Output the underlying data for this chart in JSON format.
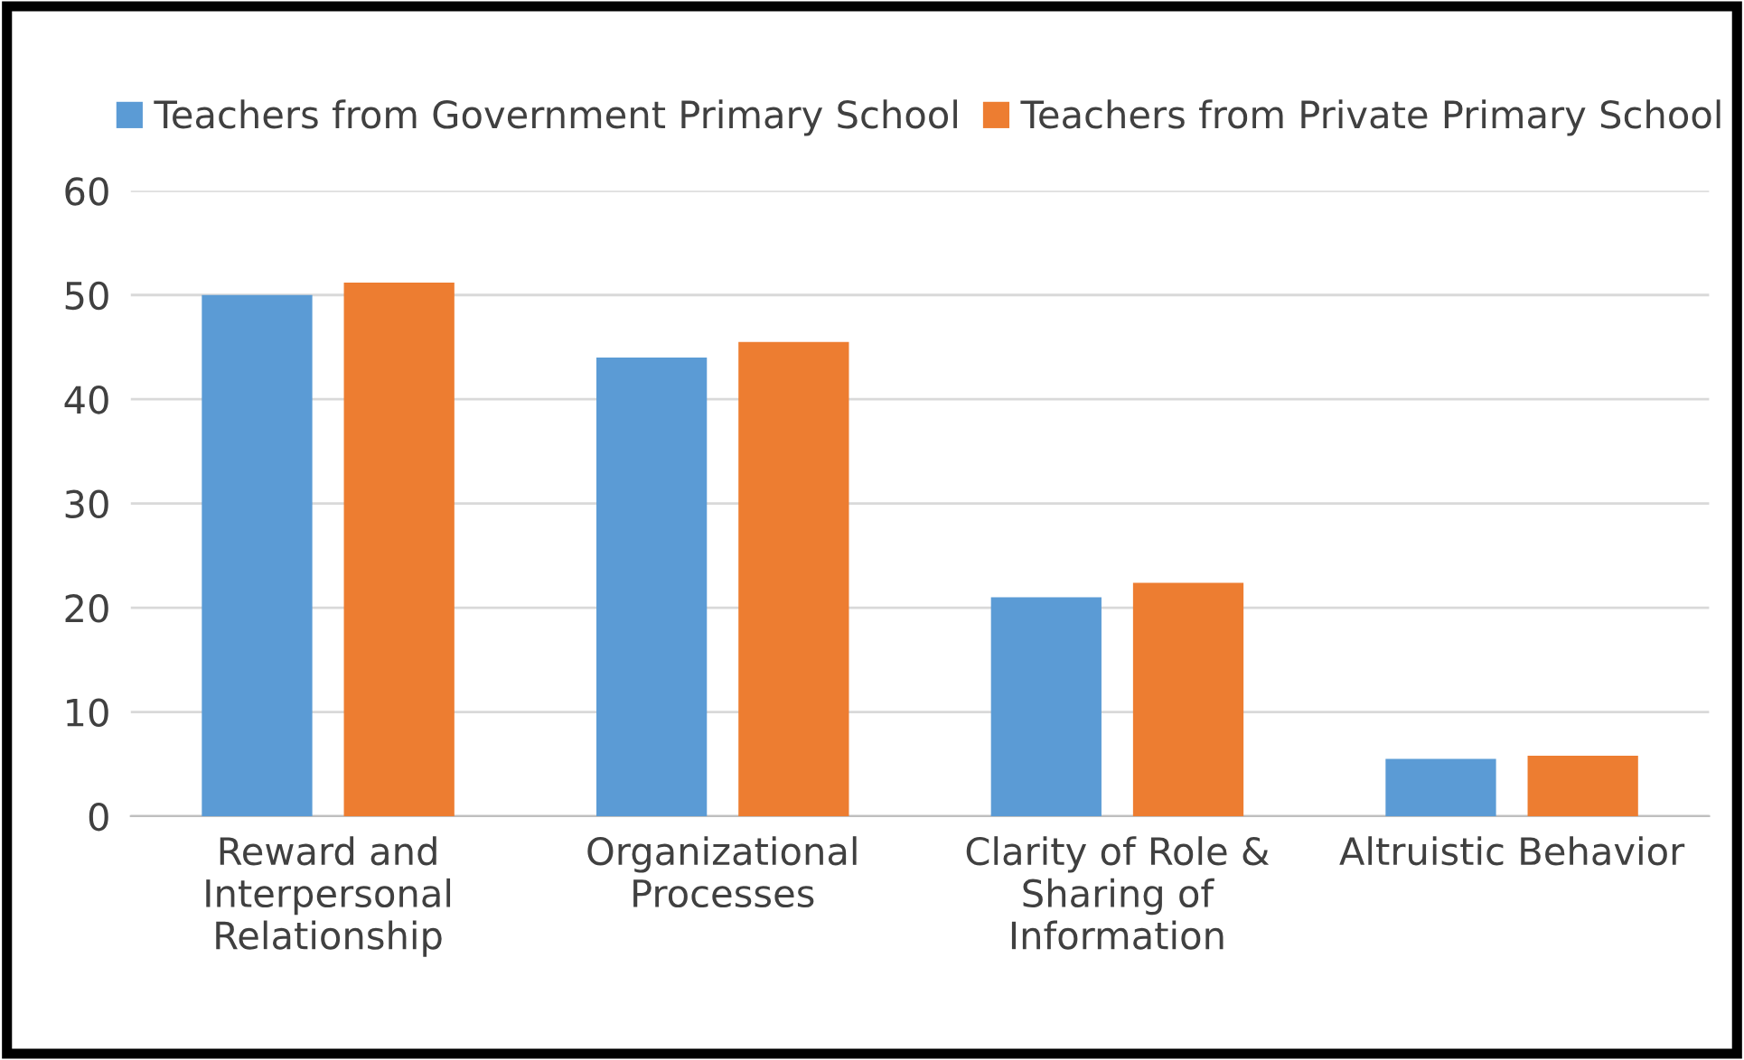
{
  "chart_data": {
    "type": "bar",
    "categories": [
      "Reward and\nInterpersonal\nRelationship",
      "Organizational\nProcesses",
      "Clarity of Role &\nSharing of\nInformation",
      "Altruistic Behavior"
    ],
    "series": [
      {
        "name": "Teachers from Government Primary School",
        "color": "#5b9bd5",
        "values": [
          50,
          44,
          21,
          5.5
        ]
      },
      {
        "name": "Teachers from Private Primary School",
        "color": "#ed7d31",
        "values": [
          51.2,
          45.5,
          22.4,
          5.8
        ]
      }
    ],
    "ylim": [
      0,
      60
    ],
    "yticks": [
      0,
      10,
      20,
      30,
      40,
      50,
      60
    ],
    "grid": "y",
    "legend": "top"
  }
}
